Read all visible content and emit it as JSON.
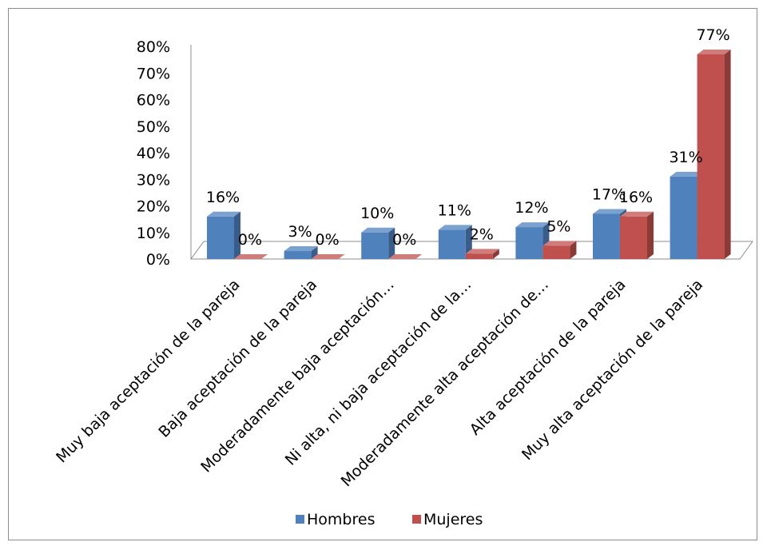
{
  "chart_data": {
    "type": "bar",
    "categories": [
      "Muy baja aceptación de la pareja",
      "Baja aceptación de la pareja",
      "Moderadamente baja aceptación…",
      "Ni alta, ni baja aceptación de la…",
      "Moderadamente alta aceptación de…",
      "Alta aceptación de la pareja",
      "Muy alta aceptación de la pareja"
    ],
    "series": [
      {
        "name": "Hombres",
        "values": [
          16,
          3,
          10,
          11,
          12,
          17,
          31
        ],
        "labels": [
          "16%",
          "3%",
          "10%",
          "11%",
          "12%",
          "17%",
          "31%"
        ],
        "color": "#4F81BD"
      },
      {
        "name": "Mujeres",
        "values": [
          0,
          0,
          0,
          2,
          5,
          16,
          77
        ],
        "labels": [
          "0%",
          "0%",
          "0%",
          "2%",
          "5%",
          "16%",
          "77%"
        ],
        "color": "#C0504D"
      }
    ],
    "ylim": [
      0,
      80
    ],
    "yticks": [
      "0%",
      "10%",
      "20%",
      "30%",
      "40%",
      "50%",
      "60%",
      "70%",
      "80%"
    ],
    "gridlines": false,
    "legend_position": "bottom",
    "three_d": true
  }
}
